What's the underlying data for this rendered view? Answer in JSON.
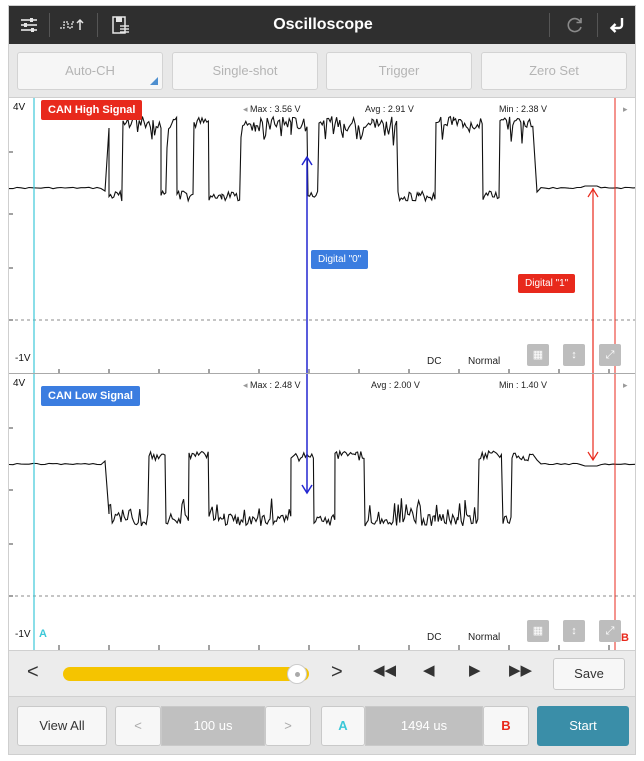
{
  "header": {
    "title": "Oscilloscope",
    "icons": [
      "sliders-icon",
      "waveform-icon",
      "save-file-icon",
      "refresh-icon",
      "back-icon"
    ]
  },
  "toolbar": {
    "auto_ch": "Auto-CH",
    "single_shot": "Single-shot",
    "trigger": "Trigger",
    "zero_set": "Zero Set"
  },
  "channel_high": {
    "label": "CAN High Signal",
    "color": "#e8291c",
    "max": "Max : 3.56 V",
    "avg": "Avg : 2.91 V",
    "min": "Min : 2.38 V",
    "top_label": "4V",
    "bottom_label": "-1V",
    "coupling": "DC",
    "mode": "Normal"
  },
  "channel_low": {
    "label": "CAN Low Signal",
    "color": "#3b7de0",
    "max": "Max : 2.48 V",
    "avg": "Avg : 2.00 V",
    "min": "Min : 1.40 V",
    "top_label": "4V",
    "bottom_label": "-1V",
    "coupling": "DC",
    "mode": "Normal"
  },
  "annotations": {
    "digital_0": "Digital \"0\"",
    "digital_1": "Digital \"1\""
  },
  "cursors": {
    "a_label": "A",
    "b_label": "B",
    "a_color": "#3cc8d8",
    "b_color": "#e8291c"
  },
  "playback": {
    "prev": "<",
    "next": ">",
    "save": "Save",
    "position": 0.95
  },
  "bottom": {
    "view_all": "View All",
    "prev": "<",
    "timebase": "100 us",
    "next": ">",
    "a": "A",
    "delta": "1494 us",
    "b": "B",
    "start": "Start"
  }
}
